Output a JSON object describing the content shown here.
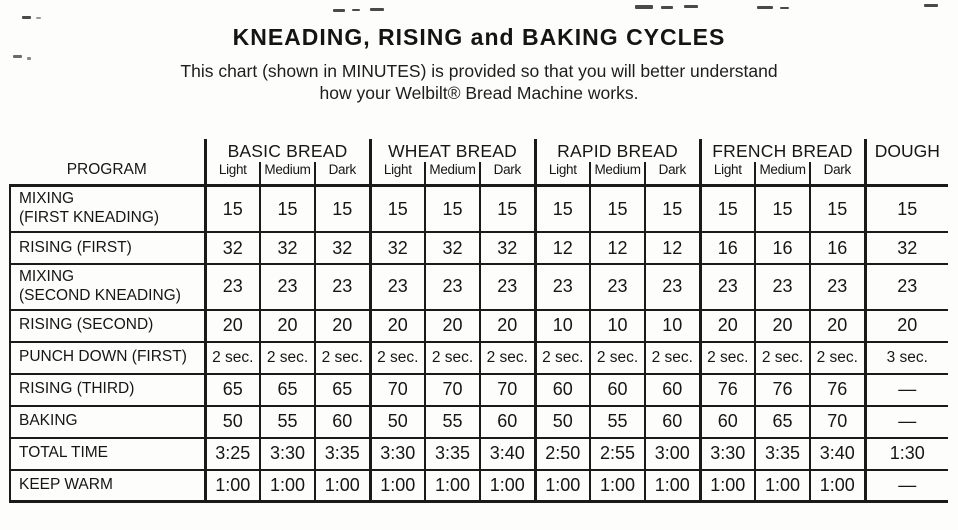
{
  "title": "KNEADING, RISING and BAKING CYCLES",
  "subtitle_line1": "This chart (shown in MINUTES) is provided so that you will better understand",
  "subtitle_line2": "how your Welbilt® Bread Machine works.",
  "table": {
    "program_header": "PROGRAM",
    "groups": [
      {
        "label": "BASIC BREAD",
        "subcols": [
          "Light",
          "Medium",
          "Dark"
        ]
      },
      {
        "label": "WHEAT BREAD",
        "subcols": [
          "Light",
          "Medium",
          "Dark"
        ]
      },
      {
        "label": "RAPID BREAD",
        "subcols": [
          "Light",
          "Medium",
          "Dark"
        ]
      },
      {
        "label": "FRENCH BREAD",
        "subcols": [
          "Light",
          "Medium",
          "Dark"
        ]
      },
      {
        "label": "DOUGH",
        "subcols": []
      }
    ],
    "rows": [
      {
        "label_lines": [
          "MIXING",
          "(FIRST KNEADING)"
        ],
        "values": [
          "15",
          "15",
          "15",
          "15",
          "15",
          "15",
          "15",
          "15",
          "15",
          "15",
          "15",
          "15",
          "15"
        ]
      },
      {
        "label_lines": [
          "RISING (FIRST)"
        ],
        "values": [
          "32",
          "32",
          "32",
          "32",
          "32",
          "32",
          "12",
          "12",
          "12",
          "16",
          "16",
          "16",
          "32"
        ]
      },
      {
        "label_lines": [
          "MIXING",
          "(SECOND KNEADING)"
        ],
        "values": [
          "23",
          "23",
          "23",
          "23",
          "23",
          "23",
          "23",
          "23",
          "23",
          "23",
          "23",
          "23",
          "23"
        ]
      },
      {
        "label_lines": [
          "RISING (SECOND)"
        ],
        "values": [
          "20",
          "20",
          "20",
          "20",
          "20",
          "20",
          "10",
          "10",
          "10",
          "20",
          "20",
          "20",
          "20"
        ]
      },
      {
        "label_lines": [
          "PUNCH DOWN (FIRST)"
        ],
        "values": [
          "2 sec.",
          "2 sec.",
          "2 sec.",
          "2 sec.",
          "2 sec.",
          "2 sec.",
          "2 sec.",
          "2 sec.",
          "2 sec.",
          "2 sec.",
          "2 sec.",
          "2 sec.",
          "3 sec."
        ]
      },
      {
        "label_lines": [
          "RISING (THIRD)"
        ],
        "values": [
          "65",
          "65",
          "65",
          "70",
          "70",
          "70",
          "60",
          "60",
          "60",
          "76",
          "76",
          "76",
          "—"
        ]
      },
      {
        "label_lines": [
          "BAKING"
        ],
        "values": [
          "50",
          "55",
          "60",
          "50",
          "55",
          "60",
          "50",
          "55",
          "60",
          "60",
          "65",
          "70",
          "—"
        ]
      },
      {
        "label_lines": [
          "TOTAL TIME"
        ],
        "values": [
          "3:25",
          "3:30",
          "3:35",
          "3:30",
          "3:35",
          "3:40",
          "2:50",
          "2:55",
          "3:00",
          "3:30",
          "3:35",
          "3:40",
          "1:30"
        ]
      },
      {
        "label_lines": [
          "KEEP WARM"
        ],
        "values": [
          "1:00",
          "1:00",
          "1:00",
          "1:00",
          "1:00",
          "1:00",
          "1:00",
          "1:00",
          "1:00",
          "1:00",
          "1:00",
          "1:00",
          "—"
        ]
      }
    ]
  }
}
